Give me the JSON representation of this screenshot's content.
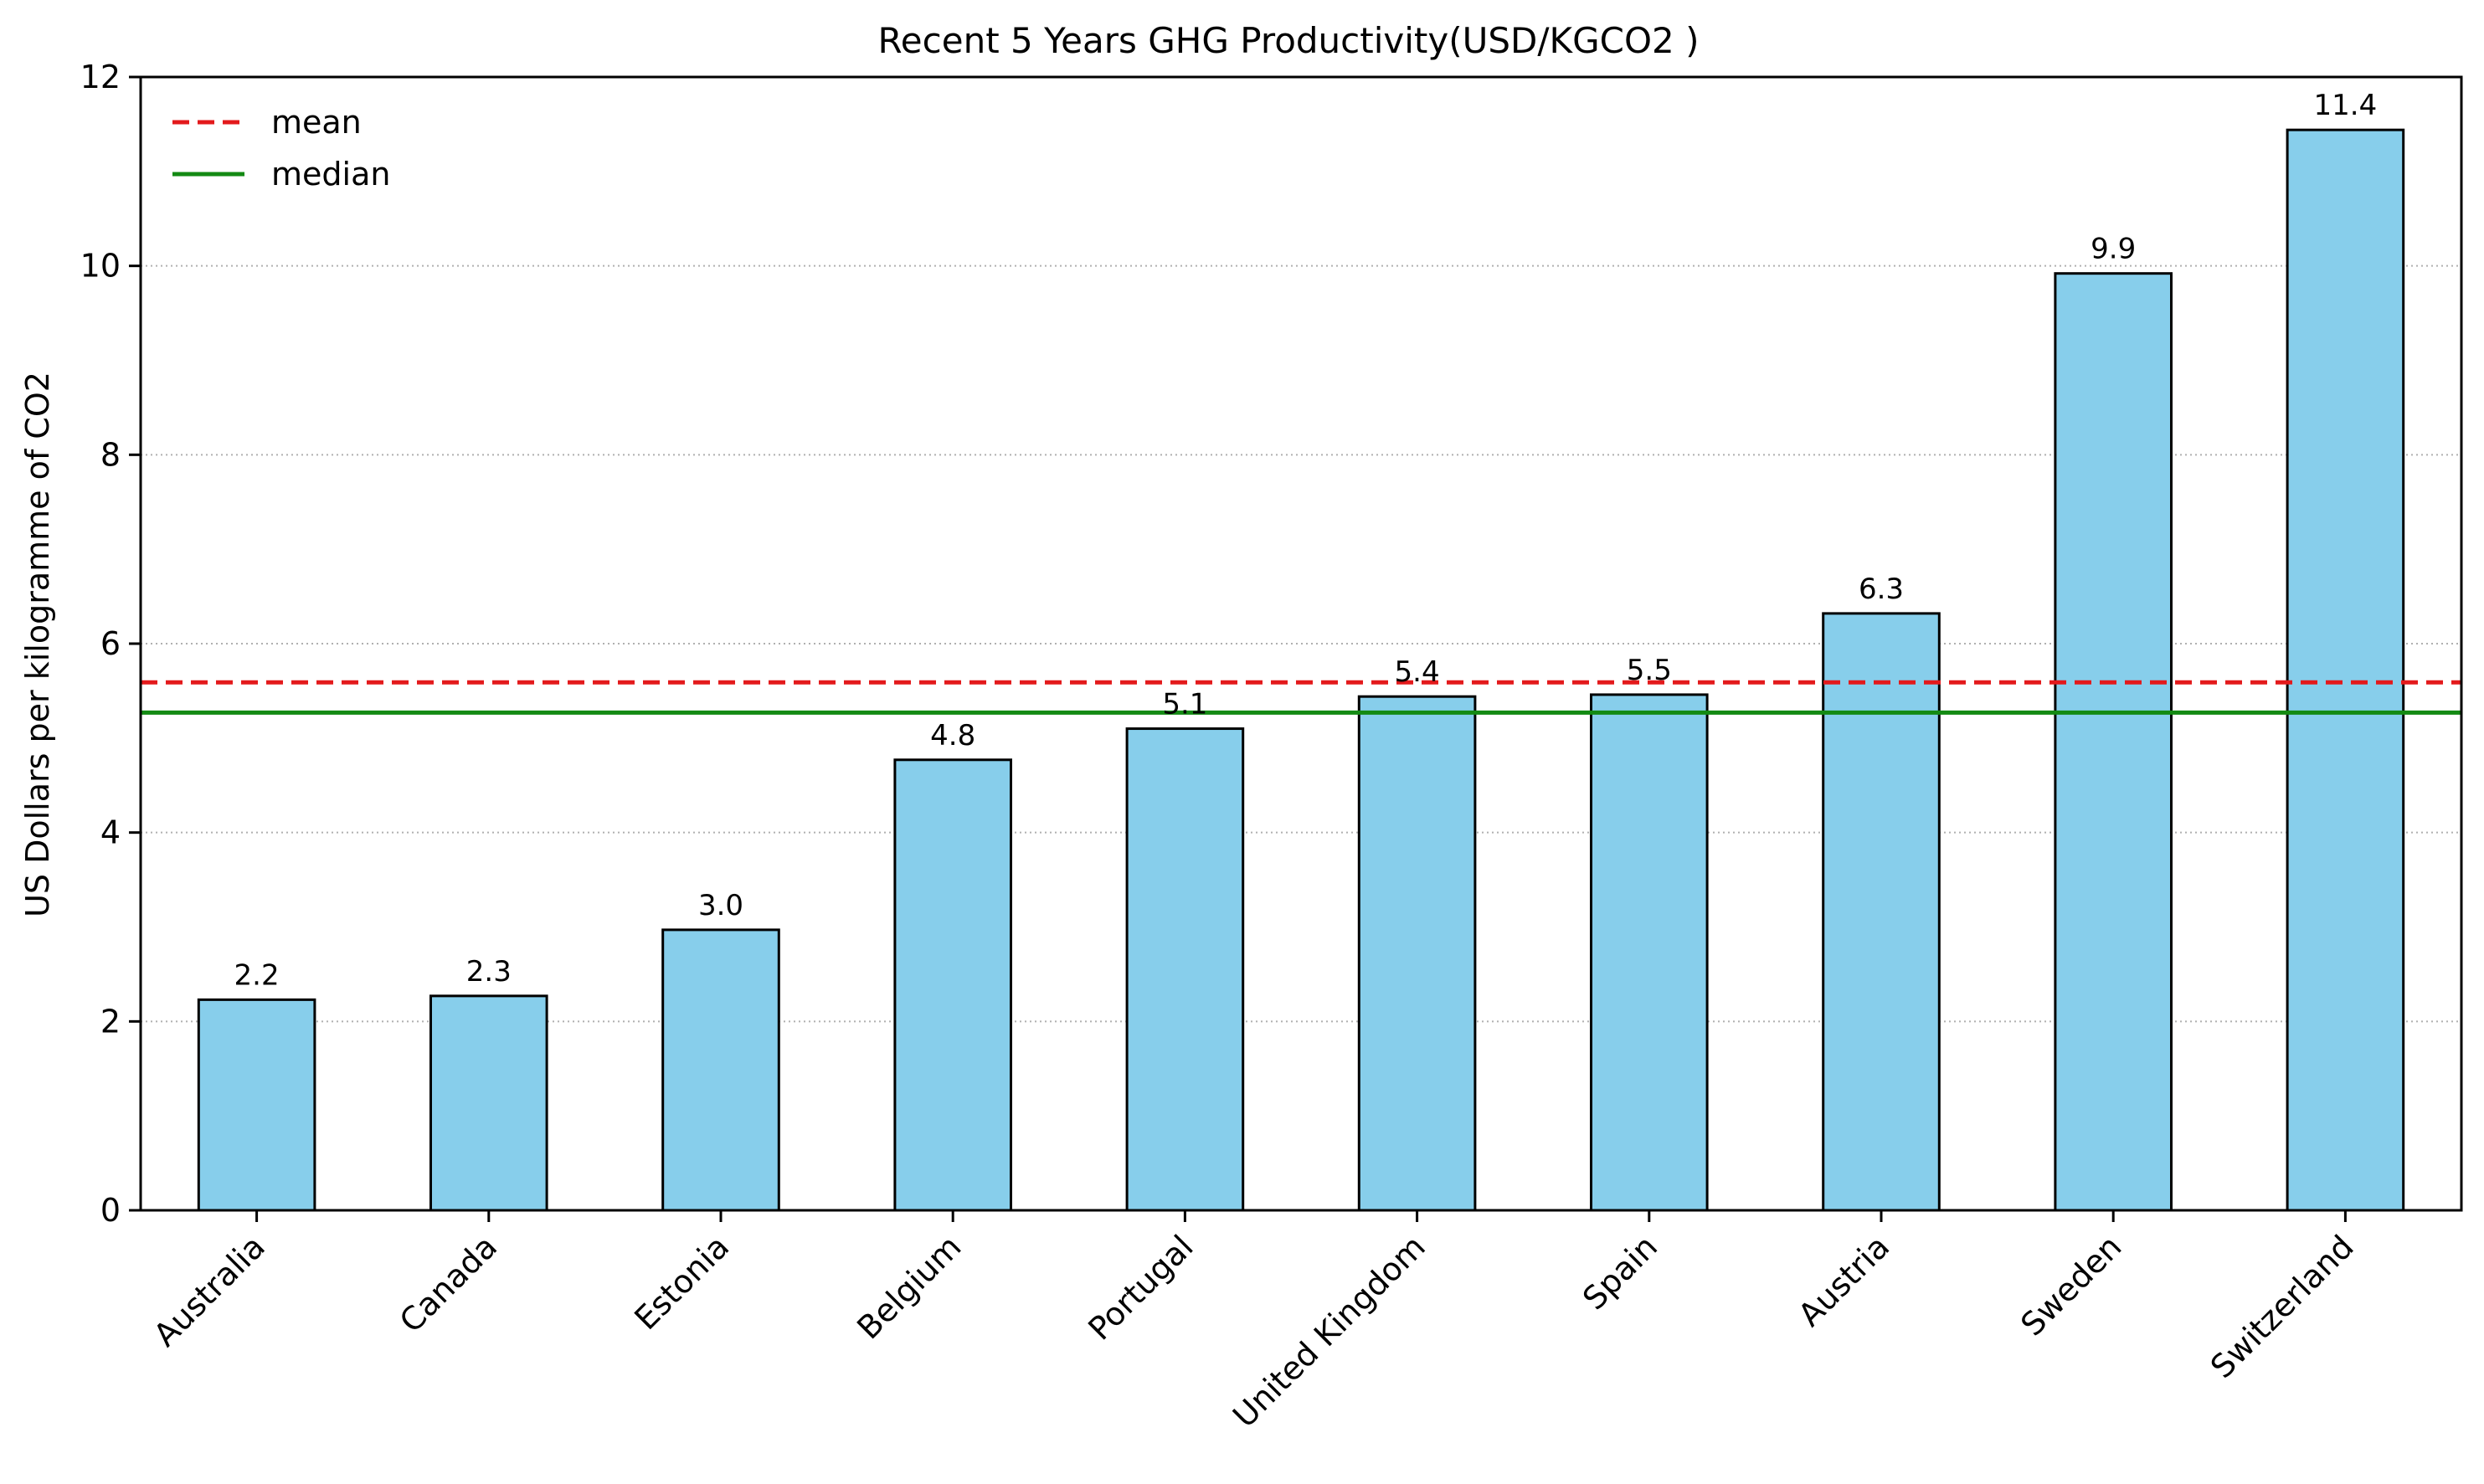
{
  "chart_data": {
    "type": "bar",
    "title": "Recent 5 Years GHG Productivity(USD/KGCO2 )",
    "xlabel": "",
    "ylabel": "US Dollars per kilogramme of CO2",
    "categories": [
      "Australia",
      "Canada",
      "Estonia",
      "Belgium",
      "Portugal",
      "United Kingdom",
      "Spain",
      "Austria",
      "Sweden",
      "Switzerland"
    ],
    "values": [
      2.23,
      2.27,
      2.97,
      4.77,
      5.1,
      5.44,
      5.46,
      6.32,
      9.92,
      11.44
    ],
    "value_labels": [
      "2.2",
      "2.3",
      "3.0",
      "4.8",
      "5.1",
      "5.4",
      "5.5",
      "6.3",
      "9.9",
      "11.4"
    ],
    "ylim": [
      0,
      12
    ],
    "yticks": [
      0,
      2,
      4,
      6,
      8,
      10,
      12
    ],
    "ytick_labels": [
      "0",
      "2",
      "4",
      "6",
      "8",
      "10",
      "12"
    ],
    "reference_lines": [
      {
        "name": "mean",
        "value": 5.59,
        "color": "#e31a1c",
        "style": "dashed"
      },
      {
        "name": "median",
        "value": 5.27,
        "color": "#138a13",
        "style": "solid"
      }
    ],
    "bar_color": "#87ceeb",
    "bar_edge_color": "#000000",
    "grid": "y-dotted",
    "legend_position": "top-left"
  }
}
